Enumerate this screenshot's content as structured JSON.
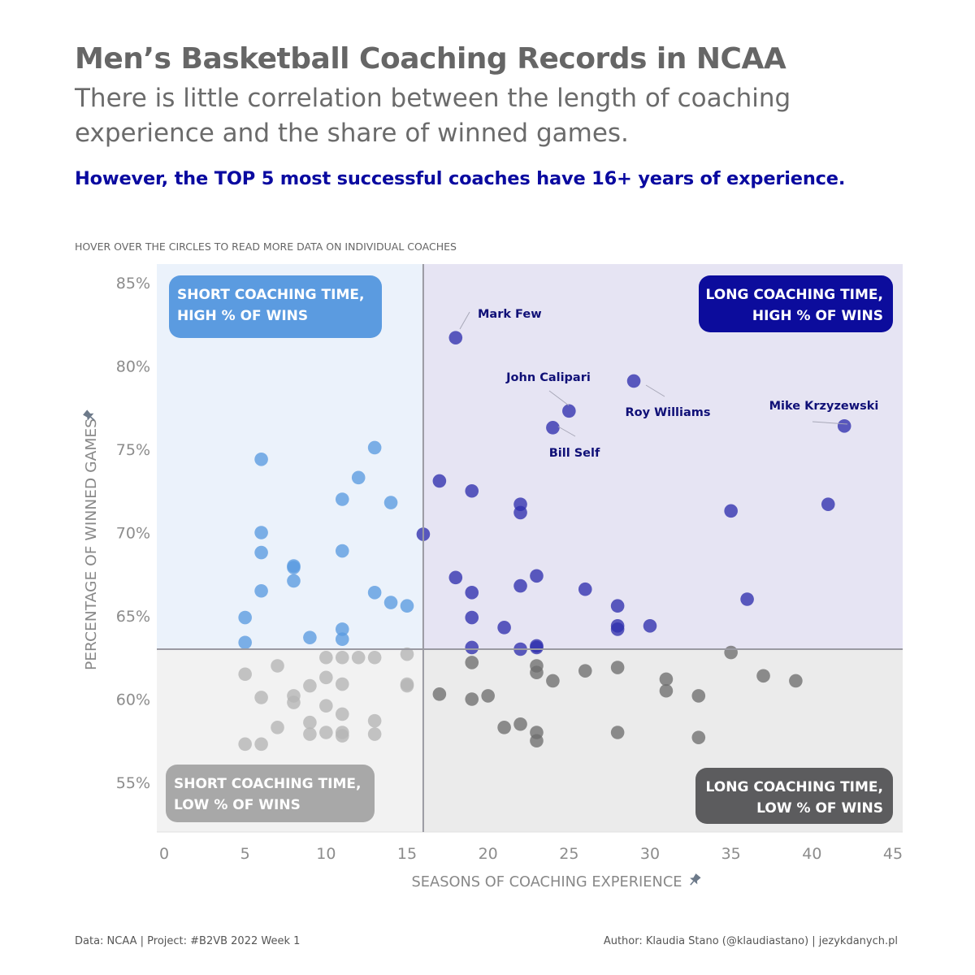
{
  "title": "Men’s Basketball Coaching Records in NCAA",
  "subtitle": "There is little correlation between the length of coaching experience and the share of winned games.",
  "highlight": "However, the TOP 5 most successful coaches have 16+ years of experience.",
  "hint": "HOVER OVER THE CIRCLES TO READ MORE DATA ON INDIVIDUAL COACHES",
  "footer": {
    "source": "Data: NCAA | Project: #B2VB 2022 Week 1",
    "author": "Author: Klaudia Stano (@klaudiastano) | jezykdanych.pl"
  },
  "colors": {
    "short_high": "#5a9be0",
    "long_high": "#2f2fad",
    "short_low": "#b5b5b5",
    "long_low": "#6e6e6e",
    "bg_short_high": "#ebf2fb",
    "bg_long_high": "#e6e4f3",
    "bg_short_low": "#f2f2f2",
    "bg_long_low": "#ebebeb",
    "highlight_text": "#0a0aa0",
    "label_box_short_high": "#5b9be0",
    "label_box_long_high": "#0c0c9c",
    "label_box_short_low": "#a8a8a8",
    "label_box_long_low": "#5c5c5e"
  },
  "chart_data": {
    "type": "scatter",
    "xlabel": "SEASONS OF COACHING EXPERIENCE",
    "ylabel": "PERCENTAGE OF WINNED GAMES",
    "axis_pin_icon": "pin-icon",
    "xlim": [
      0,
      45
    ],
    "ylim": [
      52.5,
      86.5
    ],
    "xticks": [
      0,
      5,
      10,
      15,
      20,
      25,
      30,
      35,
      40,
      45
    ],
    "yticks": [
      55,
      60,
      65,
      70,
      75,
      80,
      85
    ],
    "ytick_suffix": "%",
    "reference_lines": {
      "x": 16,
      "y": 63
    },
    "quadrant_labels": {
      "short_high": [
        "SHORT COACHING TIME,",
        "HIGH % OF WINS"
      ],
      "long_high": [
        "LONG COACHING TIME,",
        "HIGH % OF WINS"
      ],
      "short_low": [
        "SHORT COACHING TIME,",
        "LOW % OF WINS"
      ],
      "long_low": [
        "LONG COACHING TIME,",
        "LOW % OF WINS"
      ]
    },
    "annotations": [
      {
        "text": "Mark Few",
        "x": 18,
        "y": 81.7
      },
      {
        "text": "John Calipari",
        "x": 25,
        "y": 77.3
      },
      {
        "text": "Roy Williams",
        "x": 29,
        "y": 79.1
      },
      {
        "text": "Bill Self",
        "x": 24,
        "y": 76.3
      },
      {
        "text": "Mike Krzyzewski",
        "x": 42,
        "y": 76.4
      }
    ],
    "points": [
      [
        6,
        74.4
      ],
      [
        13,
        75.1
      ],
      [
        12,
        73.3
      ],
      [
        11,
        72.0
      ],
      [
        14,
        71.8
      ],
      [
        6,
        70.0
      ],
      [
        6,
        68.8
      ],
      [
        11,
        68.9
      ],
      [
        8,
        68.0
      ],
      [
        8,
        67.9
      ],
      [
        8,
        67.1
      ],
      [
        6,
        66.5
      ],
      [
        13,
        66.4
      ],
      [
        14,
        65.8
      ],
      [
        15,
        65.6
      ],
      [
        5,
        64.9
      ],
      [
        11,
        64.2
      ],
      [
        9,
        63.7
      ],
      [
        11,
        63.6
      ],
      [
        5,
        63.4
      ],
      [
        18,
        81.7
      ],
      [
        29,
        79.1
      ],
      [
        25,
        77.3
      ],
      [
        24,
        76.3
      ],
      [
        42,
        76.4
      ],
      [
        17,
        73.1
      ],
      [
        19,
        72.5
      ],
      [
        22,
        71.7
      ],
      [
        22,
        71.2
      ],
      [
        35,
        71.3
      ],
      [
        41,
        71.7
      ],
      [
        16,
        69.9
      ],
      [
        18,
        67.3
      ],
      [
        23,
        67.4
      ],
      [
        22,
        66.8
      ],
      [
        19,
        66.4
      ],
      [
        26,
        66.6
      ],
      [
        36,
        66.0
      ],
      [
        28,
        65.6
      ],
      [
        19,
        64.9
      ],
      [
        21,
        64.3
      ],
      [
        28,
        64.4
      ],
      [
        28,
        64.2
      ],
      [
        30,
        64.4
      ],
      [
        19,
        63.1
      ],
      [
        22,
        63.0
      ],
      [
        23,
        63.2
      ],
      [
        23,
        63.1
      ],
      [
        10,
        62.5
      ],
      [
        12,
        62.5
      ],
      [
        13,
        62.5
      ],
      [
        15,
        62.7
      ],
      [
        7,
        62.0
      ],
      [
        11,
        62.5
      ],
      [
        5,
        61.5
      ],
      [
        10,
        61.3
      ],
      [
        11,
        60.9
      ],
      [
        15,
        60.9
      ],
      [
        15,
        60.8
      ],
      [
        9,
        60.8
      ],
      [
        6,
        60.1
      ],
      [
        8,
        60.2
      ],
      [
        8,
        59.8
      ],
      [
        10,
        59.6
      ],
      [
        11,
        59.1
      ],
      [
        7,
        58.3
      ],
      [
        9,
        58.6
      ],
      [
        13,
        58.7
      ],
      [
        9,
        57.9
      ],
      [
        10,
        58.0
      ],
      [
        11,
        58.0
      ],
      [
        11,
        57.8
      ],
      [
        13,
        57.9
      ],
      [
        5,
        57.3
      ],
      [
        6,
        57.3
      ],
      [
        35,
        62.8
      ],
      [
        19,
        62.2
      ],
      [
        23,
        62.0
      ],
      [
        23,
        61.6
      ],
      [
        26,
        61.7
      ],
      [
        28,
        61.9
      ],
      [
        37,
        61.4
      ],
      [
        39,
        61.1
      ],
      [
        24,
        61.1
      ],
      [
        31,
        61.2
      ],
      [
        31,
        60.5
      ],
      [
        17,
        60.3
      ],
      [
        20,
        60.2
      ],
      [
        19,
        60.0
      ],
      [
        33,
        60.2
      ],
      [
        21,
        58.3
      ],
      [
        22,
        58.5
      ],
      [
        23,
        58.0
      ],
      [
        23,
        57.5
      ],
      [
        28,
        58.0
      ],
      [
        33,
        57.7
      ]
    ]
  }
}
